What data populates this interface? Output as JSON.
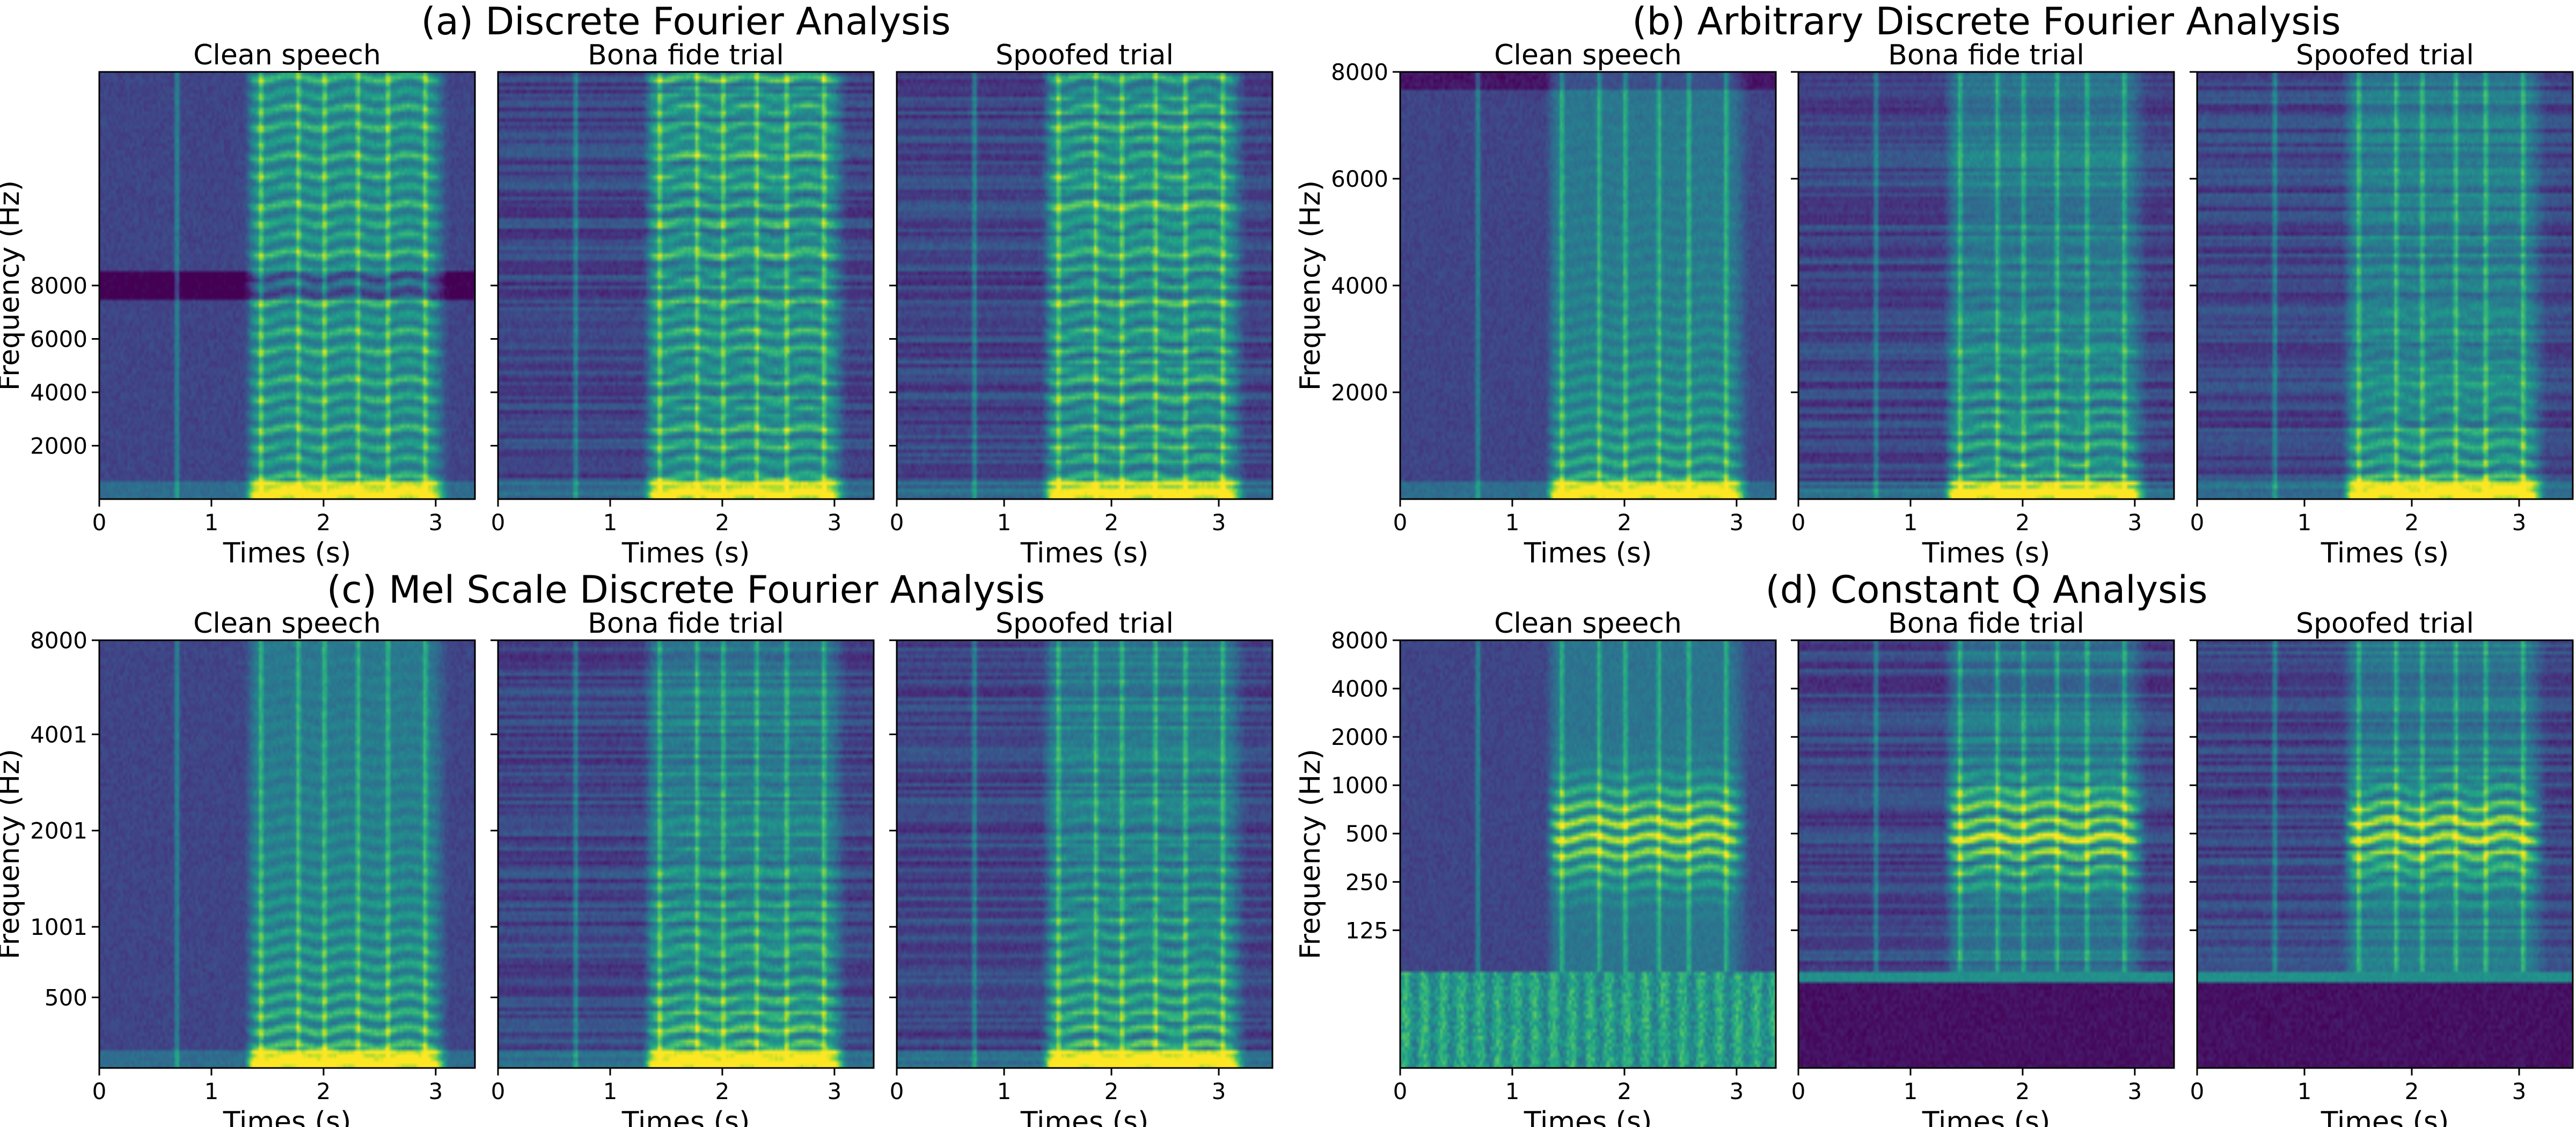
{
  "colors": {
    "viridis": [
      "#440154",
      "#482878",
      "#3e4a89",
      "#31688e",
      "#26828e",
      "#1f9e89",
      "#35b779",
      "#6ece58",
      "#b5de2b",
      "#fde725"
    ],
    "background": "#ffffff",
    "text": "#000000"
  },
  "chart_data": [
    {
      "type": "heatmap",
      "group": "(a) Discrete Fourier Analysis",
      "frequency_scale": "linear-wrapped",
      "ylabel": "Frequency (Hz)",
      "yticks": [
        "8000",
        "6000",
        "4000",
        "2000"
      ],
      "yrange": [
        0,
        8000
      ],
      "panels": [
        {
          "title": "Clean speech",
          "xlabel": "Times (s)",
          "xticks": [
            "0",
            "1",
            "2",
            "3"
          ],
          "xrange": [
            0,
            3.35
          ]
        },
        {
          "title": "Bona fide trial",
          "xlabel": "Times (s)",
          "xticks": [
            "0",
            "1",
            "2",
            "3"
          ],
          "xrange": [
            0,
            3.35
          ]
        },
        {
          "title": "Spoofed trial",
          "xlabel": "Times (s)",
          "xticks": [
            "0",
            "1",
            "2",
            "3"
          ],
          "xrange": [
            0,
            3.5
          ]
        }
      ]
    },
    {
      "type": "heatmap",
      "group": "(b) Arbitrary Discrete Fourier Analysis",
      "frequency_scale": "linear",
      "ylabel": "Frequency (Hz)",
      "yticks": [
        "8000",
        "6000",
        "4000",
        "2000"
      ],
      "yrange": [
        0,
        8000
      ],
      "panels": [
        {
          "title": "Clean speech",
          "xlabel": "Times (s)",
          "xticks": [
            "0",
            "1",
            "2",
            "3"
          ],
          "xrange": [
            0,
            3.35
          ]
        },
        {
          "title": "Bona fide trial",
          "xlabel": "Times (s)",
          "xticks": [
            "0",
            "1",
            "2",
            "3"
          ],
          "xrange": [
            0,
            3.35
          ]
        },
        {
          "title": "Spoofed trial",
          "xlabel": "Times (s)",
          "xticks": [
            "0",
            "1",
            "2",
            "3"
          ],
          "xrange": [
            0,
            3.5
          ]
        }
      ]
    },
    {
      "type": "heatmap",
      "group": "(c) Mel Scale Discrete Fourier Analysis",
      "frequency_scale": "mel",
      "ylabel": "Frequency (Hz)",
      "yticks": [
        "8000",
        "4001",
        "2001",
        "1001",
        "500"
      ],
      "yrange": [
        0,
        8000
      ],
      "panels": [
        {
          "title": "Clean speech",
          "xlabel": "Times (s)",
          "xticks": [
            "0",
            "1",
            "2",
            "3"
          ],
          "xrange": [
            0,
            3.35
          ]
        },
        {
          "title": "Bona fide trial",
          "xlabel": "Times (s)",
          "xticks": [
            "0",
            "1",
            "2",
            "3"
          ],
          "xrange": [
            0,
            3.35
          ]
        },
        {
          "title": "Spoofed trial",
          "xlabel": "Times (s)",
          "xticks": [
            "0",
            "1",
            "2",
            "3"
          ],
          "xrange": [
            0,
            3.5
          ]
        }
      ]
    },
    {
      "type": "heatmap",
      "group": "(d) Constant Q Analysis",
      "frequency_scale": "log",
      "ylabel": "Frequency (Hz)",
      "yticks": [
        "8000",
        "4000",
        "2000",
        "1000",
        "500",
        "250",
        "125"
      ],
      "yrange": [
        0,
        8000
      ],
      "panels": [
        {
          "title": "Clean speech",
          "xlabel": "Times (s)",
          "xticks": [
            "0",
            "1",
            "2",
            "3"
          ],
          "xrange": [
            0,
            3.35
          ]
        },
        {
          "title": "Bona fide trial",
          "xlabel": "Times (s)",
          "xticks": [
            "0",
            "1",
            "2",
            "3"
          ],
          "xrange": [
            0,
            3.35
          ]
        },
        {
          "title": "Spoofed trial",
          "xlabel": "Times (s)",
          "xticks": [
            "0",
            "1",
            "2",
            "3"
          ],
          "xrange": [
            0,
            3.5
          ]
        }
      ]
    }
  ]
}
